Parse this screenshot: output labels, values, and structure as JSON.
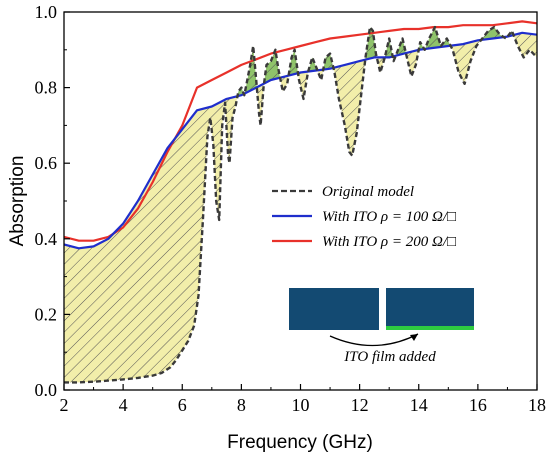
{
  "chart_data": {
    "type": "line",
    "xlabel": "Frequency (GHz)",
    "ylabel": "Absorption",
    "xlim": [
      2,
      18
    ],
    "ylim": [
      0.0,
      1.0
    ],
    "xticks": [
      "2",
      "4",
      "6",
      "8",
      "10",
      "12",
      "14",
      "16",
      "18"
    ],
    "yticks": [
      "0.0",
      "0.2",
      "0.4",
      "0.6",
      "0.8",
      "1.0"
    ],
    "legend_position": "center-right",
    "fill_colors": {
      "yellow": "#f2eeaa",
      "green": "#8fc36a",
      "hatch": "#555555"
    },
    "series": [
      {
        "name": "Original model",
        "style": "dashed",
        "color": "#3a3a3a",
        "points": [
          [
            2.0,
            0.02
          ],
          [
            2.5,
            0.02
          ],
          [
            3.0,
            0.022
          ],
          [
            3.5,
            0.025
          ],
          [
            4.0,
            0.028
          ],
          [
            4.5,
            0.032
          ],
          [
            5.0,
            0.038
          ],
          [
            5.3,
            0.045
          ],
          [
            5.6,
            0.06
          ],
          [
            5.8,
            0.08
          ],
          [
            6.0,
            0.105
          ],
          [
            6.2,
            0.13
          ],
          [
            6.4,
            0.17
          ],
          [
            6.55,
            0.25
          ],
          [
            6.7,
            0.45
          ],
          [
            6.85,
            0.67
          ],
          [
            6.95,
            0.72
          ],
          [
            7.05,
            0.65
          ],
          [
            7.15,
            0.5
          ],
          [
            7.25,
            0.45
          ],
          [
            7.35,
            0.7
          ],
          [
            7.45,
            0.76
          ],
          [
            7.55,
            0.62
          ],
          [
            7.6,
            0.6
          ],
          [
            7.7,
            0.72
          ],
          [
            7.8,
            0.75
          ],
          [
            7.9,
            0.79
          ],
          [
            8.0,
            0.8
          ],
          [
            8.1,
            0.78
          ],
          [
            8.2,
            0.82
          ],
          [
            8.3,
            0.86
          ],
          [
            8.4,
            0.91
          ],
          [
            8.5,
            0.82
          ],
          [
            8.6,
            0.73
          ],
          [
            8.65,
            0.7
          ],
          [
            8.75,
            0.8
          ],
          [
            8.85,
            0.86
          ],
          [
            9.0,
            0.87
          ],
          [
            9.15,
            0.9
          ],
          [
            9.25,
            0.85
          ],
          [
            9.4,
            0.79
          ],
          [
            9.55,
            0.81
          ],
          [
            9.7,
            0.88
          ],
          [
            9.8,
            0.9
          ],
          [
            9.95,
            0.82
          ],
          [
            10.1,
            0.77
          ],
          [
            10.25,
            0.84
          ],
          [
            10.4,
            0.88
          ],
          [
            10.55,
            0.85
          ],
          [
            10.7,
            0.82
          ],
          [
            10.85,
            0.88
          ],
          [
            11.0,
            0.89
          ],
          [
            11.15,
            0.84
          ],
          [
            11.3,
            0.77
          ],
          [
            11.5,
            0.7
          ],
          [
            11.65,
            0.63
          ],
          [
            11.75,
            0.62
          ],
          [
            11.9,
            0.68
          ],
          [
            12.05,
            0.78
          ],
          [
            12.2,
            0.88
          ],
          [
            12.35,
            0.96
          ],
          [
            12.45,
            0.95
          ],
          [
            12.55,
            0.89
          ],
          [
            12.7,
            0.84
          ],
          [
            12.85,
            0.88
          ],
          [
            13.0,
            0.93
          ],
          [
            13.15,
            0.87
          ],
          [
            13.3,
            0.9
          ],
          [
            13.45,
            0.93
          ],
          [
            13.6,
            0.88
          ],
          [
            13.75,
            0.83
          ],
          [
            13.9,
            0.86
          ],
          [
            14.05,
            0.92
          ],
          [
            14.2,
            0.9
          ],
          [
            14.35,
            0.93
          ],
          [
            14.55,
            0.96
          ],
          [
            14.75,
            0.91
          ],
          [
            14.95,
            0.93
          ],
          [
            15.15,
            0.9
          ],
          [
            15.35,
            0.84
          ],
          [
            15.55,
            0.81
          ],
          [
            15.75,
            0.87
          ],
          [
            15.95,
            0.91
          ],
          [
            16.15,
            0.93
          ],
          [
            16.35,
            0.95
          ],
          [
            16.55,
            0.96
          ],
          [
            16.75,
            0.94
          ],
          [
            16.95,
            0.93
          ],
          [
            17.15,
            0.95
          ],
          [
            17.35,
            0.91
          ],
          [
            17.55,
            0.88
          ],
          [
            17.75,
            0.9
          ],
          [
            18.0,
            0.88
          ]
        ]
      },
      {
        "name": "With ITO ρ = 100 Ω/□",
        "style": "solid",
        "color": "#1f2ecc",
        "points": [
          [
            2.0,
            0.385
          ],
          [
            2.5,
            0.375
          ],
          [
            3.0,
            0.38
          ],
          [
            3.5,
            0.4
          ],
          [
            4.0,
            0.44
          ],
          [
            4.5,
            0.5
          ],
          [
            5.0,
            0.57
          ],
          [
            5.5,
            0.64
          ],
          [
            6.0,
            0.69
          ],
          [
            6.5,
            0.74
          ],
          [
            7.0,
            0.75
          ],
          [
            7.5,
            0.77
          ],
          [
            8.0,
            0.78
          ],
          [
            8.5,
            0.8
          ],
          [
            9.0,
            0.82
          ],
          [
            9.5,
            0.83
          ],
          [
            10.0,
            0.84
          ],
          [
            10.5,
            0.845
          ],
          [
            11.0,
            0.85
          ],
          [
            11.5,
            0.86
          ],
          [
            12.0,
            0.87
          ],
          [
            12.5,
            0.88
          ],
          [
            13.0,
            0.88
          ],
          [
            13.5,
            0.89
          ],
          [
            14.0,
            0.9
          ],
          [
            14.5,
            0.905
          ],
          [
            15.0,
            0.91
          ],
          [
            15.5,
            0.915
          ],
          [
            16.0,
            0.925
          ],
          [
            16.5,
            0.93
          ],
          [
            17.0,
            0.935
          ],
          [
            17.5,
            0.945
          ],
          [
            18.0,
            0.94
          ]
        ]
      },
      {
        "name": "With ITO ρ = 200 Ω/□",
        "style": "solid",
        "color": "#e8312a",
        "points": [
          [
            2.0,
            0.405
          ],
          [
            2.5,
            0.395
          ],
          [
            3.0,
            0.395
          ],
          [
            3.5,
            0.405
          ],
          [
            4.0,
            0.43
          ],
          [
            4.5,
            0.48
          ],
          [
            5.0,
            0.55
          ],
          [
            5.5,
            0.63
          ],
          [
            6.0,
            0.7
          ],
          [
            6.5,
            0.8
          ],
          [
            7.0,
            0.82
          ],
          [
            7.5,
            0.84
          ],
          [
            8.0,
            0.86
          ],
          [
            8.5,
            0.875
          ],
          [
            9.0,
            0.89
          ],
          [
            9.5,
            0.9
          ],
          [
            10.0,
            0.91
          ],
          [
            10.5,
            0.92
          ],
          [
            11.0,
            0.93
          ],
          [
            11.5,
            0.935
          ],
          [
            12.0,
            0.94
          ],
          [
            12.5,
            0.945
          ],
          [
            13.0,
            0.95
          ],
          [
            13.5,
            0.955
          ],
          [
            14.0,
            0.955
          ],
          [
            14.5,
            0.96
          ],
          [
            15.0,
            0.96
          ],
          [
            15.5,
            0.965
          ],
          [
            16.0,
            0.965
          ],
          [
            16.5,
            0.965
          ],
          [
            17.0,
            0.97
          ],
          [
            17.5,
            0.975
          ],
          [
            18.0,
            0.97
          ]
        ]
      }
    ],
    "legend": [
      {
        "text": "Original model"
      },
      {
        "text": "With ITO ρ = 100 Ω/□"
      },
      {
        "text": "With ITO ρ = 200 Ω/□"
      }
    ],
    "inset": {
      "caption": "ITO film added",
      "block_color": "#134a72",
      "film_color": "#2ecc40"
    }
  }
}
